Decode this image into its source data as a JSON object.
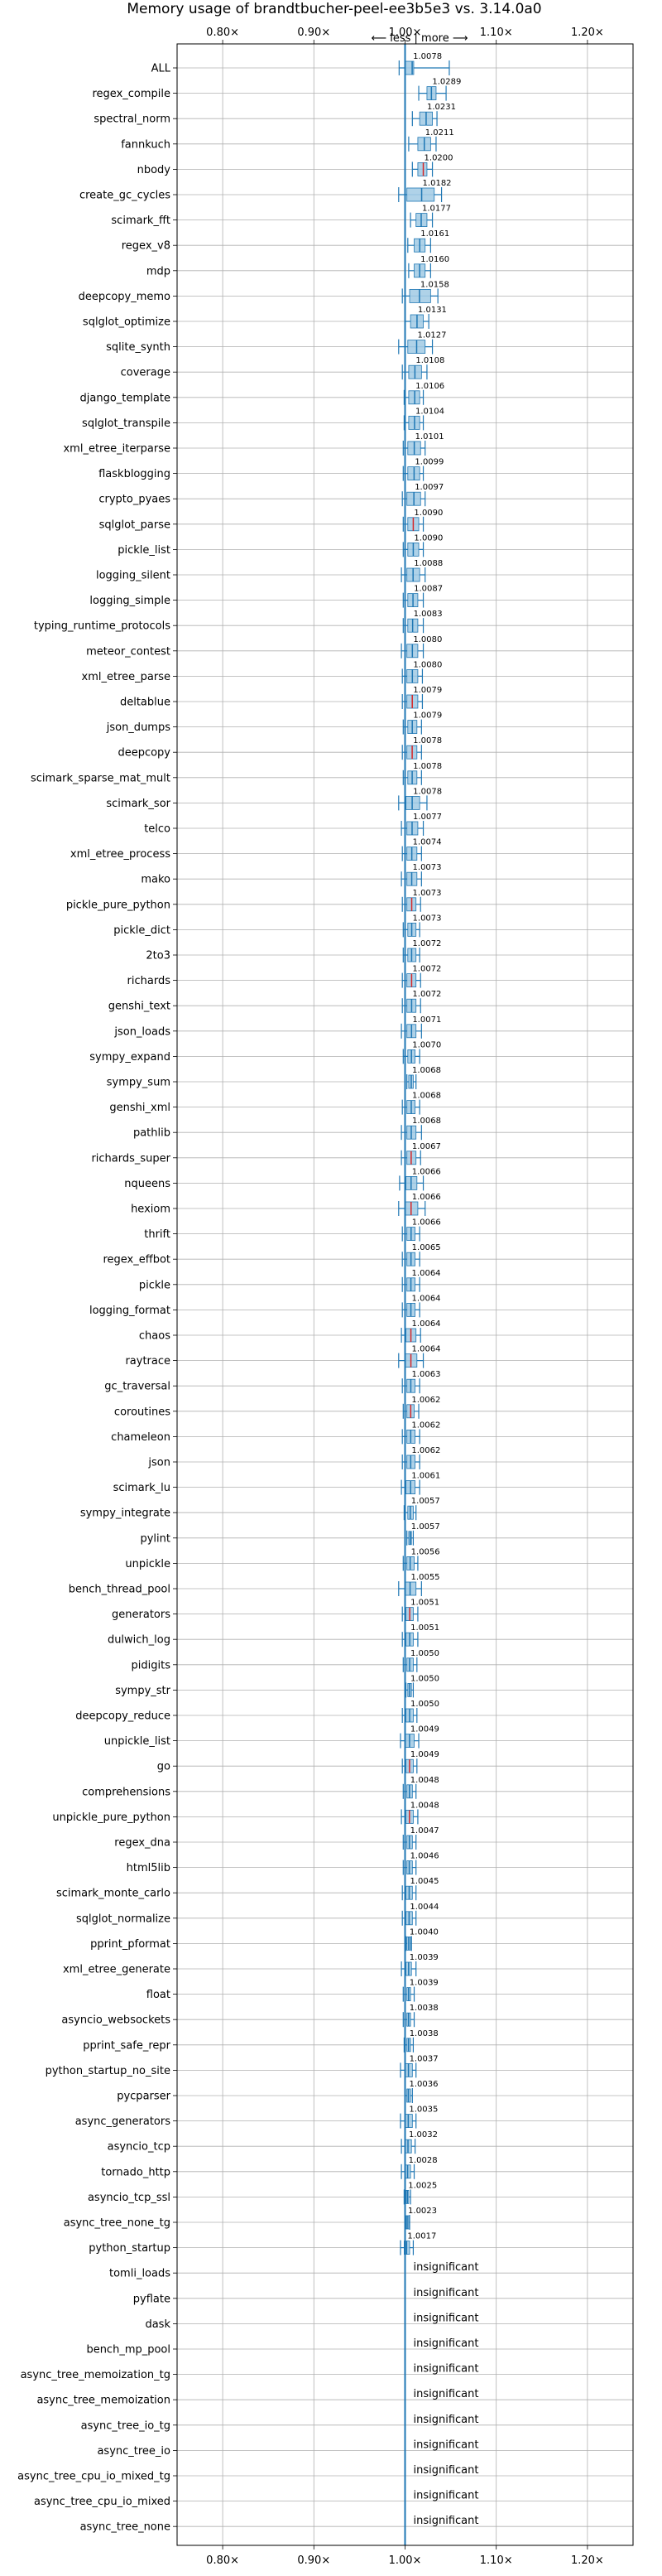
{
  "chart_data": {
    "type": "box",
    "title": "Memory usage of brandtbucher-peel-ee3b5e3 vs. 3.14.0a0",
    "direction_label": "⟵ less | more ⟶",
    "xlim": [
      0.75,
      1.25
    ],
    "x_ticks": [
      {
        "value": 0.8,
        "label": "0.80×"
      },
      {
        "value": 0.9,
        "label": "0.90×"
      },
      {
        "value": 1.0,
        "label": "1.00×"
      },
      {
        "value": 1.1,
        "label": "1.10×"
      },
      {
        "value": 1.2,
        "label": "1.20×"
      }
    ],
    "grid": true,
    "reference_line": 1.0,
    "colors": {
      "significant": "#1f77b4",
      "other": "#d62728",
      "box_fill": "#a6cde6",
      "grid": "#b0b0b0"
    },
    "insignificant_label": "insignificant",
    "categories": [
      {
        "name": "ALL",
        "value": "1.0078",
        "mean": 1.0078,
        "min": 0.9935,
        "max": 1.0485,
        "q1": 0.9995,
        "q3": 1.0095,
        "color": "blue"
      },
      {
        "name": "regex_compile",
        "value": "1.0289",
        "mean": 1.0289,
        "min": 1.015,
        "max": 1.045,
        "q1": 1.024,
        "q3": 1.034,
        "color": "blue"
      },
      {
        "name": "spectral_norm",
        "value": "1.0231",
        "mean": 1.0231,
        "min": 1.008,
        "max": 1.035,
        "q1": 1.016,
        "q3": 1.03,
        "color": "blue"
      },
      {
        "name": "fannkuch",
        "value": "1.0211",
        "mean": 1.0211,
        "min": 1.004,
        "max": 1.034,
        "q1": 1.014,
        "q3": 1.028,
        "color": "blue"
      },
      {
        "name": "nbody",
        "value": "1.0200",
        "mean": 1.02,
        "min": 1.008,
        "max": 1.03,
        "q1": 1.014,
        "q3": 1.024,
        "color": "red"
      },
      {
        "name": "create_gc_cycles",
        "value": "1.0182",
        "mean": 1.0182,
        "min": 0.993,
        "max": 1.04,
        "q1": 1.002,
        "q3": 1.032,
        "color": "blue"
      },
      {
        "name": "scimark_fft",
        "value": "1.0177",
        "mean": 1.0177,
        "min": 1.006,
        "max": 1.03,
        "q1": 1.012,
        "q3": 1.024,
        "color": "blue"
      },
      {
        "name": "regex_v8",
        "value": "1.0161",
        "mean": 1.0161,
        "min": 1.003,
        "max": 1.028,
        "q1": 1.01,
        "q3": 1.022,
        "color": "blue"
      },
      {
        "name": "mdp",
        "value": "1.0160",
        "mean": 1.016,
        "min": 1.004,
        "max": 1.028,
        "q1": 1.01,
        "q3": 1.022,
        "color": "blue"
      },
      {
        "name": "deepcopy_memo",
        "value": "1.0158",
        "mean": 1.0158,
        "min": 0.997,
        "max": 1.036,
        "q1": 1.005,
        "q3": 1.028,
        "color": "blue"
      },
      {
        "name": "sqlglot_optimize",
        "value": "1.0131",
        "mean": 1.0131,
        "min": 1.0,
        "max": 1.026,
        "q1": 1.006,
        "q3": 1.02,
        "color": "blue"
      },
      {
        "name": "sqlite_synth",
        "value": "1.0127",
        "mean": 1.0127,
        "min": 0.993,
        "max": 1.03,
        "q1": 1.003,
        "q3": 1.022,
        "color": "blue"
      },
      {
        "name": "coverage",
        "value": "1.0108",
        "mean": 1.0108,
        "min": 0.997,
        "max": 1.024,
        "q1": 1.004,
        "q3": 1.018,
        "color": "blue"
      },
      {
        "name": "django_template",
        "value": "1.0106",
        "mean": 1.0106,
        "min": 0.999,
        "max": 1.02,
        "q1": 1.004,
        "q3": 1.016,
        "color": "blue"
      },
      {
        "name": "sqlglot_transpile",
        "value": "1.0104",
        "mean": 1.0104,
        "min": 0.999,
        "max": 1.02,
        "q1": 1.004,
        "q3": 1.016,
        "color": "blue"
      },
      {
        "name": "xml_etree_iterparse",
        "value": "1.0101",
        "mean": 1.0101,
        "min": 0.998,
        "max": 1.022,
        "q1": 1.003,
        "q3": 1.017,
        "color": "blue"
      },
      {
        "name": "flaskblogging",
        "value": "1.0099",
        "mean": 1.0099,
        "min": 0.998,
        "max": 1.02,
        "q1": 1.003,
        "q3": 1.016,
        "color": "blue"
      },
      {
        "name": "crypto_pyaes",
        "value": "1.0097",
        "mean": 1.0097,
        "min": 0.997,
        "max": 1.022,
        "q1": 1.002,
        "q3": 1.017,
        "color": "blue"
      },
      {
        "name": "sqlglot_parse",
        "value": "1.0090",
        "mean": 1.009,
        "min": 0.998,
        "max": 1.02,
        "q1": 1.003,
        "q3": 1.015,
        "color": "red"
      },
      {
        "name": "pickle_list",
        "value": "1.0090",
        "mean": 1.009,
        "min": 0.998,
        "max": 1.02,
        "q1": 1.003,
        "q3": 1.015,
        "color": "blue"
      },
      {
        "name": "logging_silent",
        "value": "1.0088",
        "mean": 1.0088,
        "min": 0.996,
        "max": 1.022,
        "q1": 1.002,
        "q3": 1.016,
        "color": "blue"
      },
      {
        "name": "logging_simple",
        "value": "1.0087",
        "mean": 1.0087,
        "min": 0.998,
        "max": 1.02,
        "q1": 1.003,
        "q3": 1.014,
        "color": "blue"
      },
      {
        "name": "typing_runtime_protocols",
        "value": "1.0083",
        "mean": 1.0083,
        "min": 0.998,
        "max": 1.02,
        "q1": 1.003,
        "q3": 1.014,
        "color": "blue"
      },
      {
        "name": "meteor_contest",
        "value": "1.0080",
        "mean": 1.008,
        "min": 0.996,
        "max": 1.02,
        "q1": 1.002,
        "q3": 1.014,
        "color": "blue"
      },
      {
        "name": "xml_etree_parse",
        "value": "1.0080",
        "mean": 1.008,
        "min": 0.997,
        "max": 1.019,
        "q1": 1.002,
        "q3": 1.014,
        "color": "blue"
      },
      {
        "name": "deltablue",
        "value": "1.0079",
        "mean": 1.0079,
        "min": 0.997,
        "max": 1.019,
        "q1": 1.002,
        "q3": 1.014,
        "color": "red"
      },
      {
        "name": "json_dumps",
        "value": "1.0079",
        "mean": 1.0079,
        "min": 0.998,
        "max": 1.018,
        "q1": 1.003,
        "q3": 1.013,
        "color": "blue"
      },
      {
        "name": "deepcopy",
        "value": "1.0078",
        "mean": 1.0078,
        "min": 0.997,
        "max": 1.018,
        "q1": 1.002,
        "q3": 1.013,
        "color": "red"
      },
      {
        "name": "scimark_sparse_mat_mult",
        "value": "1.0078",
        "mean": 1.0078,
        "min": 0.998,
        "max": 1.018,
        "q1": 1.003,
        "q3": 1.013,
        "color": "blue"
      },
      {
        "name": "scimark_sor",
        "value": "1.0078",
        "mean": 1.0078,
        "min": 0.993,
        "max": 1.024,
        "q1": 1.001,
        "q3": 1.016,
        "color": "blue"
      },
      {
        "name": "telco",
        "value": "1.0077",
        "mean": 1.0077,
        "min": 0.996,
        "max": 1.02,
        "q1": 1.002,
        "q3": 1.014,
        "color": "blue"
      },
      {
        "name": "xml_etree_process",
        "value": "1.0074",
        "mean": 1.0074,
        "min": 0.997,
        "max": 1.018,
        "q1": 1.002,
        "q3": 1.013,
        "color": "blue"
      },
      {
        "name": "mako",
        "value": "1.0073",
        "mean": 1.0073,
        "min": 0.996,
        "max": 1.018,
        "q1": 1.002,
        "q3": 1.013,
        "color": "blue"
      },
      {
        "name": "pickle_pure_python",
        "value": "1.0073",
        "mean": 1.0073,
        "min": 0.997,
        "max": 1.017,
        "q1": 1.002,
        "q3": 1.012,
        "color": "red"
      },
      {
        "name": "pickle_dict",
        "value": "1.0073",
        "mean": 1.0073,
        "min": 0.998,
        "max": 1.016,
        "q1": 1.003,
        "q3": 1.012,
        "color": "blue"
      },
      {
        "name": "2to3",
        "value": "1.0072",
        "mean": 1.0072,
        "min": 0.998,
        "max": 1.016,
        "q1": 1.003,
        "q3": 1.012,
        "color": "blue"
      },
      {
        "name": "richards",
        "value": "1.0072",
        "mean": 1.0072,
        "min": 0.997,
        "max": 1.017,
        "q1": 1.002,
        "q3": 1.012,
        "color": "red"
      },
      {
        "name": "genshi_text",
        "value": "1.0072",
        "mean": 1.0072,
        "min": 0.997,
        "max": 1.017,
        "q1": 1.002,
        "q3": 1.012,
        "color": "blue"
      },
      {
        "name": "json_loads",
        "value": "1.0071",
        "mean": 1.0071,
        "min": 0.996,
        "max": 1.018,
        "q1": 1.002,
        "q3": 1.012,
        "color": "blue"
      },
      {
        "name": "sympy_expand",
        "value": "1.0070",
        "mean": 1.007,
        "min": 0.998,
        "max": 1.016,
        "q1": 1.003,
        "q3": 1.011,
        "color": "blue"
      },
      {
        "name": "sympy_sum",
        "value": "1.0068",
        "mean": 1.0068,
        "min": 1.002,
        "max": 1.012,
        "q1": 1.004,
        "q3": 1.009,
        "color": "blue"
      },
      {
        "name": "genshi_xml",
        "value": "1.0068",
        "mean": 1.0068,
        "min": 0.997,
        "max": 1.016,
        "q1": 1.002,
        "q3": 1.011,
        "color": "blue"
      },
      {
        "name": "pathlib",
        "value": "1.0068",
        "mean": 1.0068,
        "min": 0.996,
        "max": 1.018,
        "q1": 1.002,
        "q3": 1.012,
        "color": "blue"
      },
      {
        "name": "richards_super",
        "value": "1.0067",
        "mean": 1.0067,
        "min": 0.996,
        "max": 1.017,
        "q1": 1.002,
        "q3": 1.012,
        "color": "red"
      },
      {
        "name": "nqueens",
        "value": "1.0066",
        "mean": 1.0066,
        "min": 0.994,
        "max": 1.02,
        "q1": 1.001,
        "q3": 1.013,
        "color": "blue"
      },
      {
        "name": "hexiom",
        "value": "1.0066",
        "mean": 1.0066,
        "min": 0.993,
        "max": 1.022,
        "q1": 1.0,
        "q3": 1.014,
        "color": "red"
      },
      {
        "name": "thrift",
        "value": "1.0066",
        "mean": 1.0066,
        "min": 0.997,
        "max": 1.016,
        "q1": 1.002,
        "q3": 1.011,
        "color": "blue"
      },
      {
        "name": "regex_effbot",
        "value": "1.0065",
        "mean": 1.0065,
        "min": 0.997,
        "max": 1.016,
        "q1": 1.002,
        "q3": 1.011,
        "color": "blue"
      },
      {
        "name": "pickle",
        "value": "1.0064",
        "mean": 1.0064,
        "min": 0.997,
        "max": 1.016,
        "q1": 1.002,
        "q3": 1.011,
        "color": "blue"
      },
      {
        "name": "logging_format",
        "value": "1.0064",
        "mean": 1.0064,
        "min": 0.997,
        "max": 1.016,
        "q1": 1.002,
        "q3": 1.011,
        "color": "blue"
      },
      {
        "name": "chaos",
        "value": "1.0064",
        "mean": 1.0064,
        "min": 0.996,
        "max": 1.017,
        "q1": 1.001,
        "q3": 1.012,
        "color": "red"
      },
      {
        "name": "raytrace",
        "value": "1.0064",
        "mean": 1.0064,
        "min": 0.993,
        "max": 1.02,
        "q1": 1.0,
        "q3": 1.013,
        "color": "red"
      },
      {
        "name": "gc_traversal",
        "value": "1.0063",
        "mean": 1.0063,
        "min": 0.997,
        "max": 1.016,
        "q1": 1.002,
        "q3": 1.011,
        "color": "blue"
      },
      {
        "name": "coroutines",
        "value": "1.0062",
        "mean": 1.0062,
        "min": 0.998,
        "max": 1.015,
        "q1": 1.002,
        "q3": 1.01,
        "color": "red"
      },
      {
        "name": "chameleon",
        "value": "1.0062",
        "mean": 1.0062,
        "min": 0.997,
        "max": 1.016,
        "q1": 1.002,
        "q3": 1.011,
        "color": "blue"
      },
      {
        "name": "json",
        "value": "1.0062",
        "mean": 1.0062,
        "min": 0.997,
        "max": 1.016,
        "q1": 1.002,
        "q3": 1.011,
        "color": "blue"
      },
      {
        "name": "scimark_lu",
        "value": "1.0061",
        "mean": 1.0061,
        "min": 0.996,
        "max": 1.016,
        "q1": 1.001,
        "q3": 1.011,
        "color": "blue"
      },
      {
        "name": "sympy_integrate",
        "value": "1.0057",
        "mean": 1.0057,
        "min": 0.999,
        "max": 1.012,
        "q1": 1.003,
        "q3": 1.009,
        "color": "blue"
      },
      {
        "name": "pylint",
        "value": "1.0057",
        "mean": 1.0057,
        "min": 1.002,
        "max": 1.009,
        "q1": 1.004,
        "q3": 1.007,
        "color": "blue"
      },
      {
        "name": "unpickle",
        "value": "1.0056",
        "mean": 1.0056,
        "min": 0.998,
        "max": 1.014,
        "q1": 1.002,
        "q3": 1.01,
        "color": "blue"
      },
      {
        "name": "bench_thread_pool",
        "value": "1.0055",
        "mean": 1.0055,
        "min": 0.993,
        "max": 1.018,
        "q1": 1.0,
        "q3": 1.012,
        "color": "blue"
      },
      {
        "name": "generators",
        "value": "1.0051",
        "mean": 1.0051,
        "min": 0.997,
        "max": 1.014,
        "q1": 1.001,
        "q3": 1.009,
        "color": "red"
      },
      {
        "name": "dulwich_log",
        "value": "1.0051",
        "mean": 1.0051,
        "min": 0.997,
        "max": 1.014,
        "q1": 1.001,
        "q3": 1.009,
        "color": "blue"
      },
      {
        "name": "pidigits",
        "value": "1.0050",
        "mean": 1.005,
        "min": 0.998,
        "max": 1.013,
        "q1": 1.002,
        "q3": 1.009,
        "color": "blue"
      },
      {
        "name": "sympy_str",
        "value": "1.0050",
        "mean": 1.005,
        "min": 1.001,
        "max": 1.009,
        "q1": 1.003,
        "q3": 1.007,
        "color": "blue"
      },
      {
        "name": "deepcopy_reduce",
        "value": "1.0050",
        "mean": 1.005,
        "min": 0.997,
        "max": 1.013,
        "q1": 1.001,
        "q3": 1.009,
        "color": "blue"
      },
      {
        "name": "unpickle_list",
        "value": "1.0049",
        "mean": 1.0049,
        "min": 0.995,
        "max": 1.015,
        "q1": 1.0,
        "q3": 1.01,
        "color": "blue"
      },
      {
        "name": "go",
        "value": "1.0049",
        "mean": 1.0049,
        "min": 0.997,
        "max": 1.013,
        "q1": 1.001,
        "q3": 1.009,
        "color": "red"
      },
      {
        "name": "comprehensions",
        "value": "1.0048",
        "mean": 1.0048,
        "min": 0.998,
        "max": 1.012,
        "q1": 1.002,
        "q3": 1.008,
        "color": "blue"
      },
      {
        "name": "unpickle_pure_python",
        "value": "1.0048",
        "mean": 1.0048,
        "min": 0.996,
        "max": 1.014,
        "q1": 1.001,
        "q3": 1.009,
        "color": "red"
      },
      {
        "name": "regex_dna",
        "value": "1.0047",
        "mean": 1.0047,
        "min": 0.998,
        "max": 1.012,
        "q1": 1.002,
        "q3": 1.008,
        "color": "blue"
      },
      {
        "name": "html5lib",
        "value": "1.0046",
        "mean": 1.0046,
        "min": 0.998,
        "max": 1.012,
        "q1": 1.002,
        "q3": 1.008,
        "color": "blue"
      },
      {
        "name": "scimark_monte_carlo",
        "value": "1.0045",
        "mean": 1.0045,
        "min": 0.997,
        "max": 1.012,
        "q1": 1.001,
        "q3": 1.008,
        "color": "blue"
      },
      {
        "name": "sqlglot_normalize",
        "value": "1.0044",
        "mean": 1.0044,
        "min": 0.997,
        "max": 1.012,
        "q1": 1.001,
        "q3": 1.008,
        "color": "blue"
      },
      {
        "name": "pprint_pformat",
        "value": "1.0040",
        "mean": 1.004,
        "min": 1.001,
        "max": 1.007,
        "q1": 1.002,
        "q3": 1.006,
        "color": "blue"
      },
      {
        "name": "xml_etree_generate",
        "value": "1.0039",
        "mean": 1.0039,
        "min": 0.996,
        "max": 1.012,
        "q1": 1.001,
        "q3": 1.007,
        "color": "blue"
      },
      {
        "name": "float",
        "value": "1.0039",
        "mean": 1.0039,
        "min": 0.998,
        "max": 1.01,
        "q1": 1.002,
        "q3": 1.006,
        "color": "blue"
      },
      {
        "name": "asyncio_websockets",
        "value": "1.0038",
        "mean": 1.0038,
        "min": 0.998,
        "max": 1.01,
        "q1": 1.002,
        "q3": 1.006,
        "color": "blue"
      },
      {
        "name": "pprint_safe_repr",
        "value": "1.0038",
        "mean": 1.0038,
        "min": 0.999,
        "max": 1.009,
        "q1": 1.002,
        "q3": 1.006,
        "color": "blue"
      },
      {
        "name": "python_startup_no_site",
        "value": "1.0037",
        "mean": 1.0037,
        "min": 0.995,
        "max": 1.012,
        "q1": 1.0,
        "q3": 1.008,
        "color": "blue"
      },
      {
        "name": "pycparser",
        "value": "1.0036",
        "mean": 1.0036,
        "min": 1.0,
        "max": 1.008,
        "q1": 1.002,
        "q3": 1.006,
        "color": "blue"
      },
      {
        "name": "async_generators",
        "value": "1.0035",
        "mean": 1.0035,
        "min": 0.995,
        "max": 1.012,
        "q1": 1.0,
        "q3": 1.008,
        "color": "blue"
      },
      {
        "name": "asyncio_tcp",
        "value": "1.0032",
        "mean": 1.0032,
        "min": 0.996,
        "max": 1.011,
        "q1": 1.0,
        "q3": 1.007,
        "color": "blue"
      },
      {
        "name": "tornado_http",
        "value": "1.0028",
        "mean": 1.0028,
        "min": 0.996,
        "max": 1.01,
        "q1": 1.0,
        "q3": 1.006,
        "color": "blue"
      },
      {
        "name": "asyncio_tcp_ssl",
        "value": "1.0025",
        "mean": 1.0025,
        "min": 0.999,
        "max": 1.006,
        "q1": 1.001,
        "q3": 1.004,
        "color": "blue"
      },
      {
        "name": "async_tree_none_tg",
        "value": "1.0023",
        "mean": 1.0023,
        "min": 1.0,
        "max": 1.005,
        "q1": 1.001,
        "q3": 1.004,
        "color": "blue"
      },
      {
        "name": "python_startup",
        "value": "1.0017",
        "mean": 1.0017,
        "min": 0.995,
        "max": 1.009,
        "q1": 0.999,
        "q3": 1.005,
        "color": "blue"
      },
      {
        "name": "tomli_loads",
        "value": "insignificant"
      },
      {
        "name": "pyflate",
        "value": "insignificant"
      },
      {
        "name": "dask",
        "value": "insignificant"
      },
      {
        "name": "bench_mp_pool",
        "value": "insignificant"
      },
      {
        "name": "async_tree_memoization_tg",
        "value": "insignificant"
      },
      {
        "name": "async_tree_memoization",
        "value": "insignificant"
      },
      {
        "name": "async_tree_io_tg",
        "value": "insignificant"
      },
      {
        "name": "async_tree_io",
        "value": "insignificant"
      },
      {
        "name": "async_tree_cpu_io_mixed_tg",
        "value": "insignificant"
      },
      {
        "name": "async_tree_cpu_io_mixed",
        "value": "insignificant"
      },
      {
        "name": "async_tree_none",
        "value": "insignificant"
      }
    ]
  }
}
